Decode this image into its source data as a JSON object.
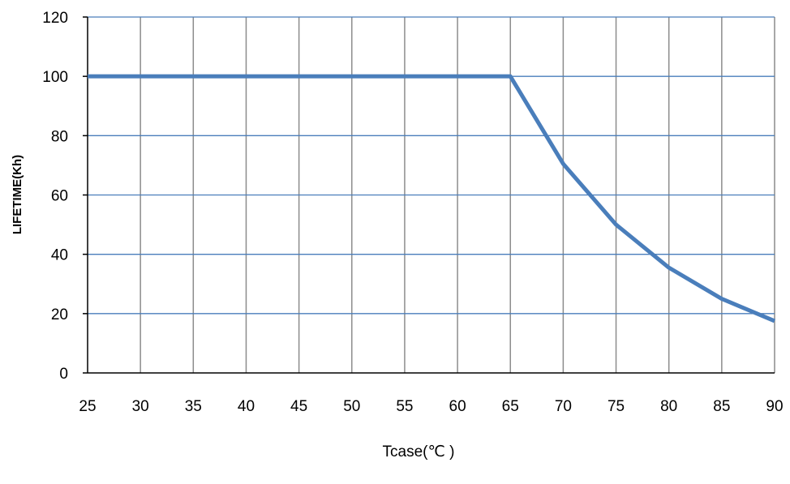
{
  "chart_data": {
    "type": "line",
    "title": "",
    "xlabel": "Tcase(℃ )",
    "ylabel": "LIFETIME(Kh)",
    "x": [
      25,
      30,
      35,
      40,
      45,
      50,
      55,
      60,
      65,
      70,
      75,
      80,
      85,
      90
    ],
    "xticks": [
      "25",
      "30",
      "35",
      "40",
      "45",
      "50",
      "55",
      "60",
      "65",
      "70",
      "75",
      "80",
      "85",
      "90"
    ],
    "yticks": [
      "0",
      "20",
      "40",
      "60",
      "80",
      "100",
      "120"
    ],
    "xlim": [
      25,
      90
    ],
    "ylim": [
      0,
      120
    ],
    "grid": true,
    "legend": "none",
    "series": [
      {
        "values": [
          100,
          100,
          100,
          100,
          100,
          100,
          100,
          100,
          100,
          70.5,
          50,
          35.5,
          25,
          17.5
        ],
        "color": "#4a7ebb"
      }
    ],
    "colors": {
      "vertical_grid": "#8c8c8c",
      "horizontal_grid": "#4a7ebb",
      "axis": "#000000"
    }
  }
}
